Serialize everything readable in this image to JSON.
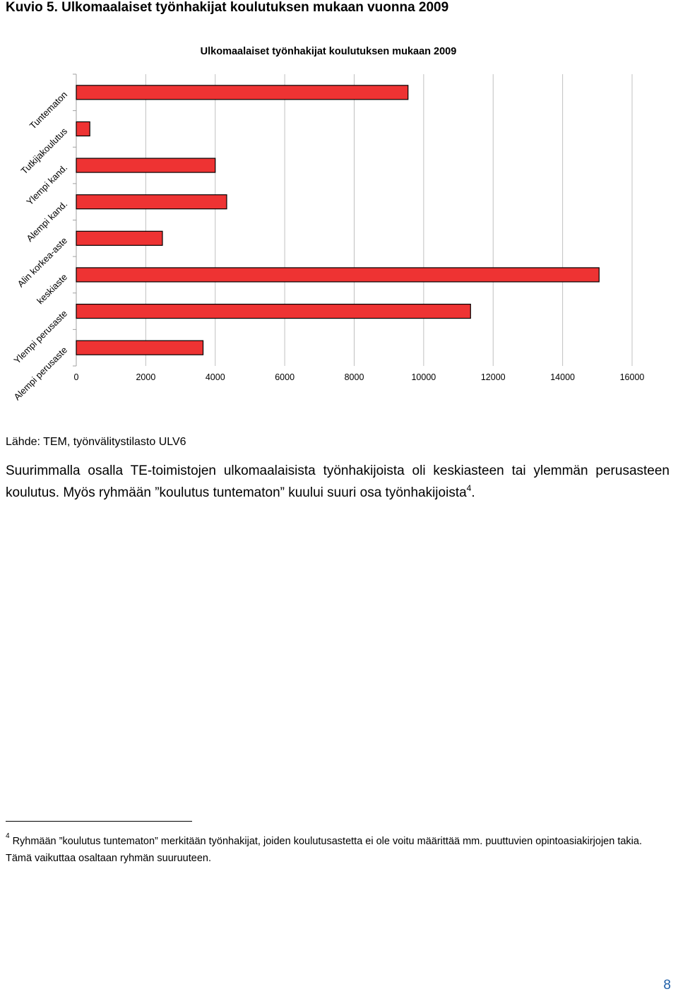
{
  "page": {
    "heading": "Kuvio 5. Ulkomaalaiset työnhakijat koulutuksen mukaan vuonna 2009",
    "source": "Lähde: TEM, työnvälitystilasto ULV6",
    "paragraph_main": "Suurimmalla osalla TE-toimistojen ulkomaalaisista työnhakijoista oli keskiasteen tai ylemmän perusasteen koulutus. Myös ryhmään ”koulutus tuntematon” kuului suuri osa työnhakijoista",
    "paragraph_sup": "4",
    "paragraph_end": ".",
    "footnote_number": "4",
    "footnote_text": "Ryhmään ”koulutus tuntematon” merkitään työnhakijat, joiden koulutusastetta ei ole voitu määrittää mm. puuttuvien opintoasiakirjojen takia. Tämä vaikuttaa osaltaan ryhmän suuruuteen.",
    "page_number": "8"
  },
  "chart_data": {
    "type": "bar",
    "orientation": "horizontal",
    "title": "Ulkomaalaiset työnhakijat koulutuksen mukaan 2009",
    "categories": [
      "Tuntematon",
      "Tutkijakoulutus",
      "Ylempi kand.",
      "Alempi kand.",
      "Alin korkea-aste",
      "keskiaste",
      "Ylempi perusaste",
      "Alempi perusaste"
    ],
    "values": [
      9550,
      390,
      4000,
      4330,
      2480,
      15050,
      11350,
      3650
    ],
    "xlim": [
      0,
      16000
    ],
    "x_ticks": [
      0,
      2000,
      4000,
      6000,
      8000,
      10000,
      12000,
      14000,
      16000
    ],
    "grid": true,
    "legend": "none",
    "bar_color": "#ee3333",
    "bar_border": "#000000",
    "grid_color": "#c0c0c0"
  }
}
